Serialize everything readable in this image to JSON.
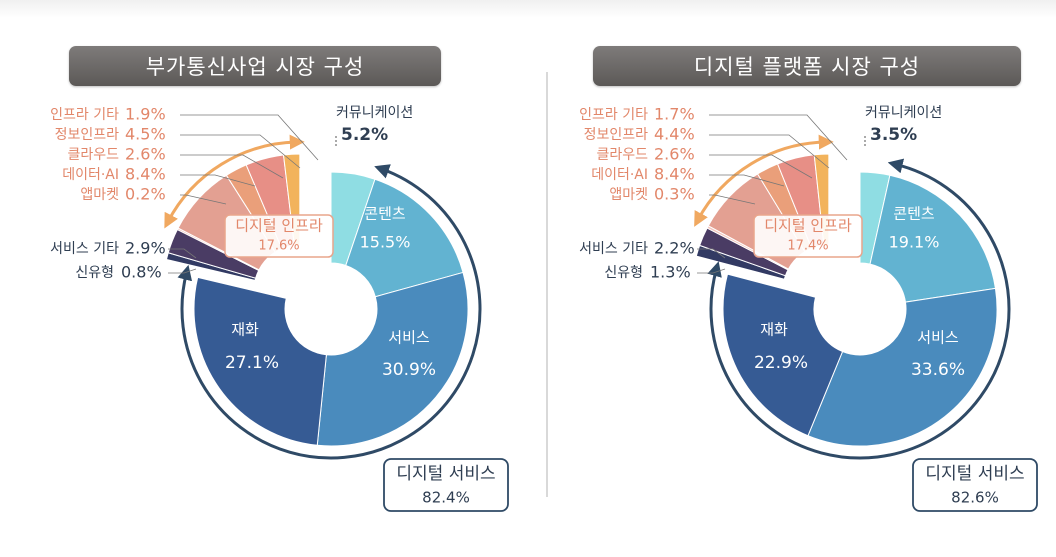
{
  "charts": {
    "left_title": "부가통신사업 시장 구성",
    "right_title": "디지털 플랫폼 시장 구성"
  },
  "chart_data": [
    {
      "type": "pie",
      "title": "부가통신사업 시장 구성",
      "slices": [
        {
          "label": "커뮤니케이션",
          "value": 5.2,
          "color": "#8fdde3",
          "group": "커뮤니케이션"
        },
        {
          "label": "콘텐츠",
          "value": 15.5,
          "color": "#62b3d1",
          "group": "디지털 서비스"
        },
        {
          "label": "서비스",
          "value": 30.9,
          "color": "#4a8bbd",
          "group": "디지털 서비스"
        },
        {
          "label": "재화",
          "value": 27.1,
          "color": "#365b94",
          "group": "디지털 서비스"
        },
        {
          "label": "신유형",
          "value": 0.8,
          "color": "#323a63",
          "group": "기타"
        },
        {
          "label": "서비스 기타",
          "value": 2.9,
          "color": "#4a3c64",
          "group": "기타"
        },
        {
          "label": "앱마켓",
          "value": 0.2,
          "color": "#f3c5bd",
          "group": "디지털 인프라"
        },
        {
          "label": "데이터·AI",
          "value": 8.4,
          "color": "#e3a092",
          "group": "디지털 인프라"
        },
        {
          "label": "클라우드",
          "value": 2.6,
          "color": "#ea9f7a",
          "group": "디지털 인프라"
        },
        {
          "label": "정보인프라",
          "value": 4.5,
          "color": "#e78f86",
          "group": "디지털 인프라"
        },
        {
          "label": "인프라 기타",
          "value": 1.9,
          "color": "#f2b35c",
          "group": "디지털 인프라"
        }
      ],
      "labels": {
        "커뮤니케이션": {
          "name": "커뮤니케이션",
          "value": "5.2%"
        },
        "콘텐츠": {
          "name": "콘텐츠",
          "value": "15.5%"
        },
        "서비스": {
          "name": "서비스",
          "value": "30.9%"
        },
        "재화": {
          "name": "재화",
          "value": "27.1%"
        },
        "서비스 기타": {
          "name": "서비스 기타",
          "value": "2.9%"
        },
        "신유형": {
          "name": "신유형",
          "value": "0.8%"
        },
        "인프라 기타": {
          "name": "인프라 기타",
          "value": "1.9%"
        },
        "정보인프라": {
          "name": "정보인프라",
          "value": "4.5%"
        },
        "클라우드": {
          "name": "클라우드",
          "value": "2.6%"
        },
        "데이터·AI": {
          "name": "데이터·AI",
          "value": "8.4%"
        },
        "앱마켓": {
          "name": "앱마켓",
          "value": "0.2%"
        }
      },
      "groups": [
        {
          "name": "디지털 인프라",
          "value": "17.6%"
        },
        {
          "name": "디지털 서비스",
          "value": "82.4%"
        }
      ]
    },
    {
      "type": "pie",
      "title": "디지털 플랫폼 시장 구성",
      "slices": [
        {
          "label": "커뮤니케이션",
          "value": 3.5,
          "color": "#8fdde3",
          "group": "커뮤니케이션"
        },
        {
          "label": "콘텐츠",
          "value": 19.1,
          "color": "#62b3d1",
          "group": "디지털 서비스"
        },
        {
          "label": "서비스",
          "value": 33.6,
          "color": "#4a8bbd",
          "group": "디지털 서비스"
        },
        {
          "label": "재화",
          "value": 22.9,
          "color": "#365b94",
          "group": "디지털 서비스"
        },
        {
          "label": "신유형",
          "value": 1.3,
          "color": "#323a63",
          "group": "기타"
        },
        {
          "label": "서비스 기타",
          "value": 2.2,
          "color": "#4a3c64",
          "group": "기타"
        },
        {
          "label": "앱마켓",
          "value": 0.3,
          "color": "#f3c5bd",
          "group": "디지털 인프라"
        },
        {
          "label": "데이터·AI",
          "value": 8.4,
          "color": "#e3a092",
          "group": "디지털 인프라"
        },
        {
          "label": "클라우드",
          "value": 2.6,
          "color": "#ea9f7a",
          "group": "디지털 인프라"
        },
        {
          "label": "정보인프라",
          "value": 4.4,
          "color": "#e78f86",
          "group": "디지털 인프라"
        },
        {
          "label": "인프라 기타",
          "value": 1.7,
          "color": "#f2b35c",
          "group": "디지털 인프라"
        }
      ],
      "labels": {
        "커뮤니케이션": {
          "name": "커뮤니케이션",
          "value": "3.5%"
        },
        "콘텐츠": {
          "name": "콘텐츠",
          "value": "19.1%"
        },
        "서비스": {
          "name": "서비스",
          "value": "33.6%"
        },
        "재화": {
          "name": "재화",
          "value": "22.9%"
        },
        "서비스 기타": {
          "name": "서비스 기타",
          "value": "2.2%"
        },
        "신유형": {
          "name": "신유형",
          "value": "1.3%"
        },
        "인프라 기타": {
          "name": "인프라 기타",
          "value": "1.7%"
        },
        "정보인프라": {
          "name": "정보인프라",
          "value": "4.4%"
        },
        "클라우드": {
          "name": "클라우드",
          "value": "2.6%"
        },
        "데이터·AI": {
          "name": "데이터·AI",
          "value": "8.4%"
        },
        "앱마켓": {
          "name": "앱마켓",
          "value": "0.3%"
        }
      },
      "groups": [
        {
          "name": "디지털 인프라",
          "value": "17.4%"
        },
        {
          "name": "디지털 서비스",
          "value": "82.6%"
        }
      ]
    }
  ]
}
